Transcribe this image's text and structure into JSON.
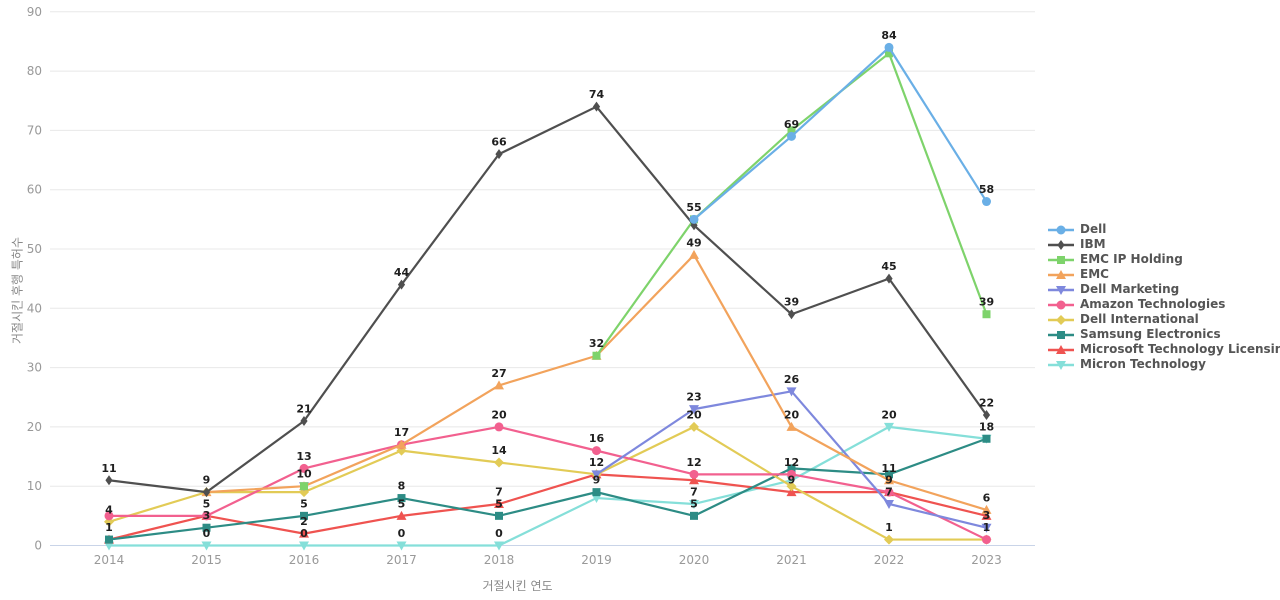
{
  "chart_data": {
    "type": "line",
    "x": [
      2014,
      2015,
      2016,
      2017,
      2018,
      2019,
      2020,
      2021,
      2022,
      2023
    ],
    "xlabel": "거절시킨 연도",
    "ylabel": "거절시킨 후행 특허수",
    "ylim": [
      0,
      90
    ],
    "ytick_step": 10,
    "grid": true,
    "legend_position": "right",
    "series": [
      {
        "name": "Dell",
        "color": "#6aafe6",
        "marker": "circle",
        "values": [
          null,
          null,
          null,
          null,
          null,
          null,
          55,
          69,
          84,
          58
        ],
        "labels": [
          null,
          null,
          null,
          null,
          null,
          null,
          null,
          "69",
          "84",
          "58"
        ]
      },
      {
        "name": "IBM",
        "color": "#4f4f4f",
        "marker": "diamond-thin",
        "values": [
          11,
          9,
          21,
          44,
          66,
          74,
          54,
          39,
          45,
          22
        ],
        "labels": [
          "11",
          "9",
          "21",
          "44",
          "66",
          "74",
          null,
          "39",
          "45",
          "22"
        ]
      },
      {
        "name": "EMC IP Holding",
        "color": "#7ed36b",
        "marker": "square",
        "values": [
          null,
          null,
          10,
          null,
          null,
          32,
          55,
          70,
          83,
          39
        ],
        "labels": [
          null,
          null,
          null,
          null,
          null,
          null,
          "55",
          null,
          null,
          "39"
        ]
      },
      {
        "name": "EMC",
        "color": "#f2a35c",
        "marker": "triangle-up",
        "values": [
          null,
          9,
          10,
          17,
          27,
          32,
          49,
          20,
          11,
          6
        ],
        "labels": [
          null,
          null,
          "10",
          null,
          "27",
          "32",
          "49",
          "20",
          "11",
          "6"
        ]
      },
      {
        "name": "Dell Marketing",
        "color": "#7e88dd",
        "marker": "triangle-down",
        "values": [
          null,
          null,
          10,
          null,
          null,
          12,
          23,
          26,
          7,
          3
        ],
        "labels": [
          null,
          null,
          null,
          null,
          null,
          null,
          "23",
          "26",
          "7",
          "3"
        ]
      },
      {
        "name": "Amazon Technologies",
        "color": "#f2608f",
        "marker": "circle",
        "values": [
          5,
          5,
          13,
          17,
          20,
          16,
          12,
          12,
          9,
          1
        ],
        "labels": [
          null,
          null,
          "13",
          "17",
          "20",
          "16",
          "12",
          "12",
          null,
          null
        ]
      },
      {
        "name": "Dell International",
        "color": "#e2cb56",
        "marker": "diamond",
        "values": [
          4,
          9,
          9,
          16,
          14,
          12,
          20,
          10,
          1,
          1
        ],
        "labels": [
          "4",
          null,
          null,
          null,
          "14",
          null,
          "20",
          null,
          "1",
          "1"
        ]
      },
      {
        "name": "Samsung Electronics",
        "color": "#2d8c85",
        "marker": "square",
        "values": [
          1,
          3,
          5,
          8,
          5,
          9,
          5,
          13,
          12,
          18
        ],
        "labels": [
          null,
          "3",
          "5",
          "8",
          "5",
          "9",
          "5",
          null,
          null,
          "18"
        ]
      },
      {
        "name": "Microsoft Technology Licensing",
        "color": "#ef5350",
        "marker": "triangle-up",
        "values": [
          1,
          5,
          2,
          5,
          7,
          12,
          11,
          9,
          9,
          5
        ],
        "labels": [
          "1",
          "5",
          "2",
          "5",
          "7",
          "12",
          null,
          "9",
          "9",
          null
        ]
      },
      {
        "name": "Micron Technology",
        "color": "#85dfd9",
        "marker": "triangle-down",
        "values": [
          0,
          0,
          0,
          0,
          0,
          8,
          7,
          11,
          20,
          18
        ],
        "labels": [
          null,
          "0",
          "0",
          "0",
          "0",
          null,
          "7",
          null,
          "20",
          null
        ]
      }
    ],
    "style": {
      "grid_color": "#e8e8e8",
      "baseline_color": "#c9d4e8",
      "tick_color": "#999999",
      "label_color": "#1f1f1f"
    }
  }
}
